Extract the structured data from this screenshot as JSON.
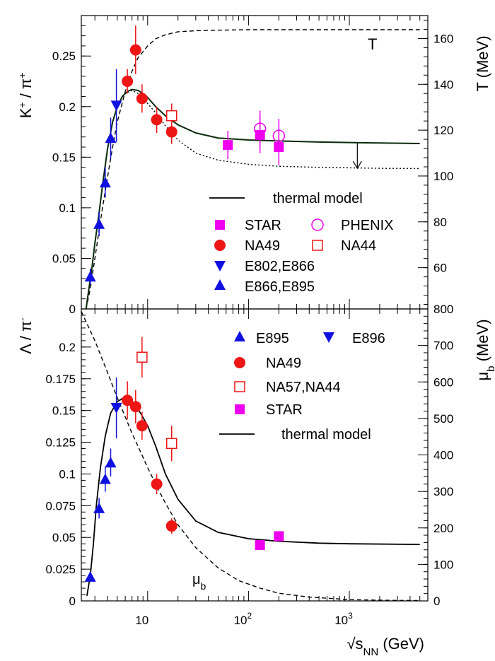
{
  "colors": {
    "blue": "#1010e0",
    "red": "#ee1515",
    "magenta": "#ee00ee",
    "model_top": "#0a2a0a",
    "black": "#000000"
  },
  "chart_data": [
    {
      "type": "scatter",
      "panel": "top",
      "x_scale": "log",
      "xlim": [
        2.2,
        6000
      ],
      "ylim": [
        0,
        0.29
      ],
      "y_ticks": [
        "0",
        "0.05",
        "0.1",
        "0.15",
        "0.2",
        "0.25"
      ],
      "ylabel_main": "K",
      "ylabel_sup1": "+",
      "ylabel_mid": " / π",
      "ylabel_sup2": "+",
      "right_axis": {
        "title": "T (MeV)",
        "ticks": [
          "60",
          "80",
          "100",
          "120",
          "140",
          "160"
        ],
        "tick_values": [
          60,
          80,
          100,
          120,
          140,
          160
        ],
        "ylim": [
          42,
          170
        ]
      },
      "series": [
        {
          "label": "E802,E866",
          "marker": "triangle-down",
          "color": "blue",
          "points": [
            {
              "x": 4.9,
              "y": 0.201,
              "err": 0.036
            }
          ]
        },
        {
          "label": "E866,E895",
          "marker": "triangle-up",
          "color": "blue",
          "points": [
            {
              "x": 2.7,
              "y": 0.032,
              "err": 0.008
            },
            {
              "x": 3.3,
              "y": 0.084,
              "err": 0.012
            },
            {
              "x": 3.8,
              "y": 0.125,
              "err": 0.015
            },
            {
              "x": 4.3,
              "y": 0.169,
              "err": 0.02
            }
          ]
        },
        {
          "label": "NA49",
          "marker": "circle",
          "color": "red",
          "points": [
            {
              "x": 6.3,
              "y": 0.225,
              "err": 0.012
            },
            {
              "x": 7.6,
              "y": 0.256,
              "err": 0.024
            },
            {
              "x": 8.8,
              "y": 0.208,
              "err": 0.014
            },
            {
              "x": 12.3,
              "y": 0.187,
              "err": 0.013
            },
            {
              "x": 17.3,
              "y": 0.175,
              "err": 0.012
            }
          ]
        },
        {
          "label": "NA44",
          "marker": "square-open",
          "color": "red",
          "points": [
            {
              "x": 17.3,
              "y": 0.191,
              "err": 0.012
            }
          ]
        },
        {
          "label": "STAR",
          "marker": "square",
          "color": "magenta",
          "points": [
            {
              "x": 62.4,
              "y": 0.162,
              "err": 0.014
            },
            {
              "x": 130,
              "y": 0.172,
              "err": 0.018
            },
            {
              "x": 200,
              "y": 0.16,
              "err": 0.018
            }
          ]
        },
        {
          "label": "PHENIX",
          "marker": "circle-open",
          "color": "magenta",
          "points": [
            {
              "x": 130,
              "y": 0.178,
              "err": 0.018
            },
            {
              "x": 200,
              "y": 0.171,
              "err": 0.017
            }
          ]
        }
      ],
      "model_curve_solid": [
        [
          2.45,
          0.0
        ],
        [
          2.6,
          0.018
        ],
        [
          2.8,
          0.04
        ],
        [
          3.0,
          0.065
        ],
        [
          3.3,
          0.095
        ],
        [
          3.6,
          0.125
        ],
        [
          4.0,
          0.158
        ],
        [
          4.5,
          0.185
        ],
        [
          5.0,
          0.2
        ],
        [
          5.6,
          0.21
        ],
        [
          6.3,
          0.215
        ],
        [
          7.0,
          0.217
        ],
        [
          8.0,
          0.216
        ],
        [
          9.0,
          0.213
        ],
        [
          10,
          0.209
        ],
        [
          12,
          0.2
        ],
        [
          15,
          0.191
        ],
        [
          20,
          0.182
        ],
        [
          30,
          0.174
        ],
        [
          50,
          0.169
        ],
        [
          100,
          0.167
        ],
        [
          200,
          0.166
        ],
        [
          500,
          0.165
        ],
        [
          1000,
          0.1645
        ],
        [
          2000,
          0.164
        ],
        [
          5000,
          0.1635
        ]
      ],
      "model_curve_dotted": [
        [
          6.3,
          0.214
        ],
        [
          7,
          0.216
        ],
        [
          8,
          0.213
        ],
        [
          9,
          0.208
        ],
        [
          10,
          0.203
        ],
        [
          12,
          0.194
        ],
        [
          15,
          0.181
        ],
        [
          20,
          0.167
        ],
        [
          30,
          0.154
        ],
        [
          50,
          0.147
        ],
        [
          100,
          0.143
        ],
        [
          200,
          0.141
        ],
        [
          500,
          0.14
        ],
        [
          1000,
          0.1395
        ],
        [
          2000,
          0.139
        ],
        [
          5000,
          0.1388
        ]
      ],
      "temperature_curve_dashed": [
        [
          2.45,
          0.0
        ],
        [
          2.7,
          0.02
        ],
        [
          3.0,
          0.05
        ],
        [
          3.5,
          0.095
        ],
        [
          4.0,
          0.13
        ],
        [
          4.5,
          0.16
        ],
        [
          5,
          0.185
        ],
        [
          6,
          0.215
        ],
        [
          7,
          0.235
        ],
        [
          8,
          0.248
        ],
        [
          10,
          0.26
        ],
        [
          12,
          0.267
        ],
        [
          15,
          0.271
        ],
        [
          20,
          0.274
        ],
        [
          30,
          0.275
        ],
        [
          50,
          0.2755
        ],
        [
          100,
          0.276
        ],
        [
          1000,
          0.276
        ],
        [
          5000,
          0.276
        ]
      ],
      "curve_label": "T",
      "arrow": {
        "x": 1200,
        "from": 0.164,
        "to": 0.139
      },
      "legend": {
        "model_label": "thermal model",
        "entries": [
          "STAR",
          "PHENIX",
          "NA49",
          "NA44",
          "E802,E866",
          "E866,E895"
        ],
        "placement": "lower-right"
      }
    },
    {
      "type": "scatter",
      "panel": "bottom",
      "x_scale": "log",
      "xlim": [
        2.2,
        6000
      ],
      "ylim": [
        0,
        0.23
      ],
      "x_ticks": [
        {
          "base": "10",
          "exp": ""
        },
        {
          "base": "10",
          "exp": "2"
        },
        {
          "base": "10",
          "exp": "3"
        }
      ],
      "x_tick_values": [
        10,
        100,
        1000
      ],
      "xlabel_root": "√s",
      "xlabel_sub": "NN",
      "xlabel_unit": " (GeV)",
      "y_ticks": [
        "0",
        "0.025",
        "0.05",
        "0.075",
        "0.1",
        "0.125",
        "0.15",
        "0.175",
        "0.2"
      ],
      "ylabel_main": "Λ / π",
      "ylabel_sup": "-",
      "right_axis": {
        "title_main": "μ",
        "title_sub": "b",
        "title_unit": " (MeV)",
        "ticks": [
          "0",
          "100",
          "200",
          "300",
          "400",
          "500",
          "600",
          "700",
          "800"
        ],
        "tick_values": [
          0,
          100,
          200,
          300,
          400,
          500,
          600,
          700,
          800
        ],
        "ylim": [
          0,
          800
        ]
      },
      "series": [
        {
          "label": "E895",
          "marker": "triangle-up",
          "color": "blue",
          "points": [
            {
              "x": 2.7,
              "y": 0.019,
              "err": 0.004
            },
            {
              "x": 3.3,
              "y": 0.073,
              "err": 0.008
            },
            {
              "x": 3.8,
              "y": 0.096,
              "err": 0.01
            },
            {
              "x": 4.3,
              "y": 0.109,
              "err": 0.011
            }
          ]
        },
        {
          "label": "E896",
          "marker": "triangle-down",
          "color": "blue",
          "points": [
            {
              "x": 4.9,
              "y": 0.152,
              "err": 0.024
            }
          ]
        },
        {
          "label": "NA49",
          "marker": "circle",
          "color": "red",
          "points": [
            {
              "x": 6.3,
              "y": 0.158,
              "err": 0.015
            },
            {
              "x": 7.6,
              "y": 0.153,
              "err": 0.013
            },
            {
              "x": 8.8,
              "y": 0.138,
              "err": 0.011
            },
            {
              "x": 12.3,
              "y": 0.092,
              "err": 0.008
            },
            {
              "x": 17.3,
              "y": 0.059,
              "err": 0.006
            }
          ]
        },
        {
          "label": "NA57,NA44",
          "marker": "square-open",
          "color": "red",
          "points": [
            {
              "x": 8.8,
              "y": 0.192,
              "err": 0.016
            },
            {
              "x": 17.3,
              "y": 0.124,
              "err": 0.014
            }
          ]
        },
        {
          "label": "STAR",
          "marker": "square",
          "color": "magenta",
          "points": [
            {
              "x": 130,
              "y": 0.044,
              "err": 0.004
            },
            {
              "x": 200,
              "y": 0.051,
              "err": 0.004
            }
          ]
        }
      ],
      "model_curve_solid": [
        [
          2.5,
          0.004
        ],
        [
          2.7,
          0.02
        ],
        [
          2.9,
          0.045
        ],
        [
          3.1,
          0.075
        ],
        [
          3.4,
          0.105
        ],
        [
          3.8,
          0.13
        ],
        [
          4.3,
          0.148
        ],
        [
          5,
          0.157
        ],
        [
          5.8,
          0.16
        ],
        [
          7,
          0.157
        ],
        [
          8.5,
          0.148
        ],
        [
          10,
          0.138
        ],
        [
          12,
          0.122
        ],
        [
          15,
          0.1
        ],
        [
          20,
          0.08
        ],
        [
          30,
          0.063
        ],
        [
          50,
          0.054
        ],
        [
          100,
          0.049
        ],
        [
          200,
          0.047
        ],
        [
          500,
          0.0455
        ],
        [
          1000,
          0.045
        ],
        [
          5000,
          0.0445
        ]
      ],
      "mu_curve_dashed": [
        [
          2.2,
          0.228
        ],
        [
          3,
          0.205
        ],
        [
          4,
          0.18
        ],
        [
          5,
          0.16
        ],
        [
          6,
          0.145
        ],
        [
          7,
          0.132
        ],
        [
          8,
          0.122
        ],
        [
          10,
          0.105
        ],
        [
          12,
          0.092
        ],
        [
          15,
          0.077
        ],
        [
          20,
          0.06
        ],
        [
          30,
          0.042
        ],
        [
          50,
          0.026
        ],
        [
          80,
          0.016
        ],
        [
          130,
          0.01
        ],
        [
          200,
          0.006
        ],
        [
          400,
          0.003
        ],
        [
          1000,
          0.001
        ],
        [
          3000,
          0.0004
        ],
        [
          5000,
          0.0003
        ]
      ],
      "curve_label_main": "μ",
      "curve_label_sub": "b",
      "legend": {
        "model_label": "thermal model",
        "entries": [
          "E895",
          "E896",
          "NA49",
          "NA57,NA44",
          "STAR"
        ],
        "placement": "upper-right"
      }
    }
  ]
}
